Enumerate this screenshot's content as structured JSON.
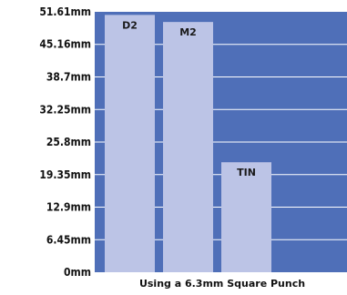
{
  "chart_data": {
    "type": "bar",
    "categories": [
      "D2",
      "M2",
      "TIN"
    ],
    "values": [
      51.0,
      49.6,
      21.8
    ],
    "ylim": [
      0,
      51.61
    ],
    "y_ticks": [
      {
        "value": 0,
        "label": "0mm"
      },
      {
        "value": 6.45,
        "label": "6.45mm"
      },
      {
        "value": 12.9,
        "label": "12.9mm"
      },
      {
        "value": 19.35,
        "label": "19.35mm"
      },
      {
        "value": 25.8,
        "label": "25.8mm"
      },
      {
        "value": 32.25,
        "label": "32.25mm"
      },
      {
        "value": 38.7,
        "label": "38.7mm"
      },
      {
        "value": 45.16,
        "label": "45.16mm"
      },
      {
        "value": 51.61,
        "label": "51.61mm"
      }
    ],
    "xlabel": "Using a 6.3mm Square Punch",
    "ylabel": "",
    "grid": true,
    "colors": {
      "plot_background": "#4f6fb8",
      "bar_fill": "#bcc4e6",
      "gridline": "#ffffff"
    }
  }
}
